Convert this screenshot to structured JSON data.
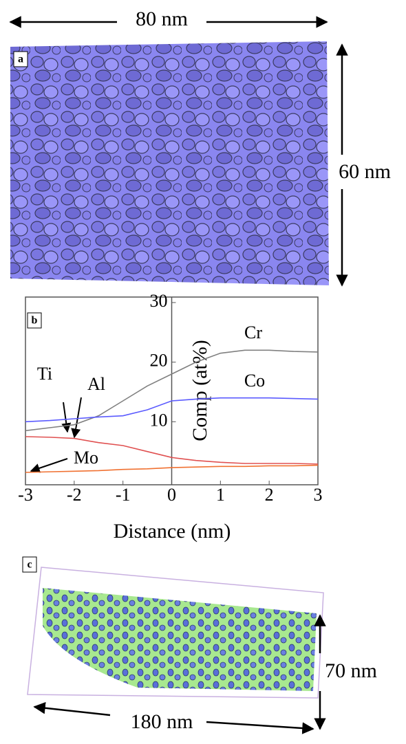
{
  "panel_a": {
    "label": "a",
    "width_label": "80 nm",
    "height_label": "60 nm"
  },
  "chart_data": {
    "type": "line",
    "panel_label": "b",
    "x_label": "Distance (nm)",
    "y_label": "Comp (at%)",
    "x": [
      -3,
      -2.5,
      -2,
      -1.5,
      -1,
      -0.5,
      0,
      0.5,
      1,
      1.5,
      2,
      2.5,
      3
    ],
    "series": [
      {
        "name": "Cr",
        "color": "#808080",
        "values": [
          8.5,
          9,
          9.5,
          11,
          13.5,
          16,
          18,
          20,
          21.5,
          22,
          22,
          21.8,
          21.7
        ]
      },
      {
        "name": "Co",
        "color": "#5a5aff",
        "values": [
          10,
          10.2,
          10.5,
          10.8,
          11,
          12,
          13.5,
          13.8,
          14,
          14,
          14,
          13.9,
          13.8
        ]
      },
      {
        "name": "Al",
        "color": "#e05050",
        "values": [
          7.5,
          7.4,
          7.2,
          6.5,
          6,
          5,
          4,
          3.5,
          3.2,
          3,
          3,
          3,
          2.9
        ]
      },
      {
        "name": "Mo",
        "color": "#f07030",
        "values": [
          1.5,
          1.6,
          1.7,
          1.8,
          2,
          2.1,
          2.3,
          2.4,
          2.5,
          2.5,
          2.6,
          2.6,
          2.7
        ]
      }
    ],
    "annotation": "Ti",
    "xlim": [
      -3,
      3
    ],
    "ylim": [
      0,
      30
    ],
    "xticks": [
      -3,
      -2,
      -1,
      0,
      1,
      2,
      3
    ],
    "yticks": [
      10,
      20,
      30
    ]
  },
  "panel_c": {
    "label": "c",
    "height_label": "70 nm",
    "width_label": "180 nm"
  }
}
